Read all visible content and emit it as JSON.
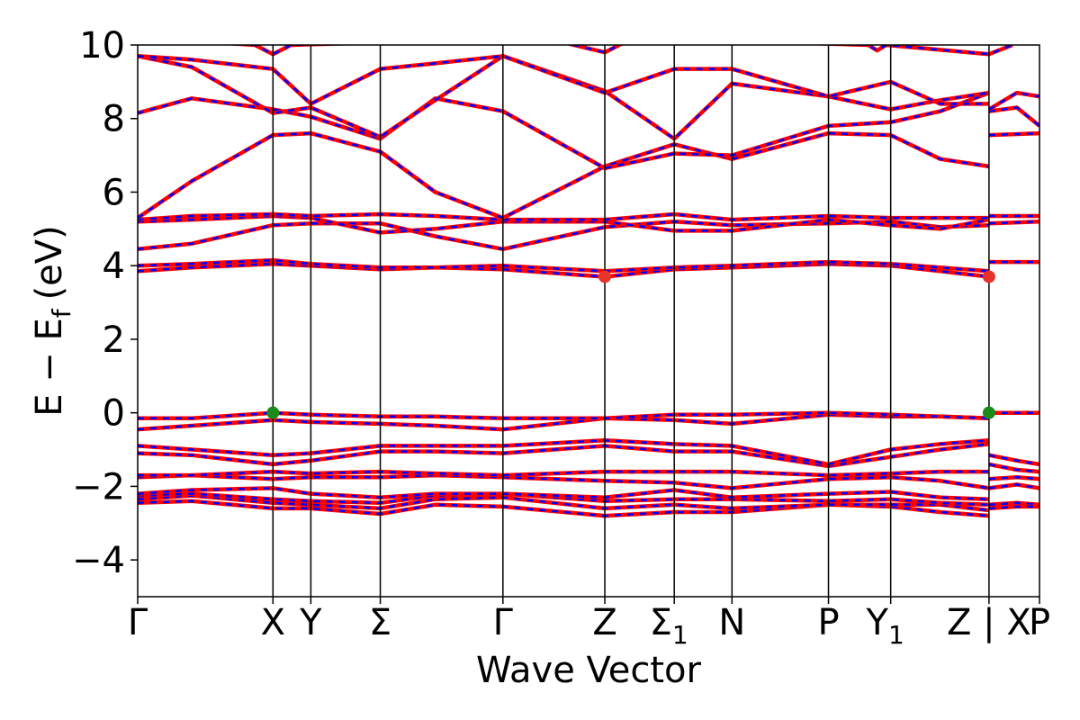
{
  "chart_data": {
    "type": "line",
    "title": "",
    "xlabel": "Wave Vector",
    "ylabel": "E − E_f (eV)",
    "ylabel_parts": {
      "main": "E − E",
      "sub": "f",
      "unit": "(eV)"
    },
    "ylim": [
      -5,
      10
    ],
    "yticks": [
      -4,
      -2,
      0,
      2,
      4,
      6,
      8,
      10
    ],
    "ytick_labels": [
      "−4",
      "−2",
      "0",
      "2",
      "4",
      "6",
      "8",
      "10"
    ],
    "grid": false,
    "legend": "none",
    "kpath": [
      {
        "label": "Γ",
        "sub": "",
        "x": 0.0
      },
      {
        "label": "X",
        "sub": "",
        "x": 1.5
      },
      {
        "label": "Y",
        "sub": "",
        "x": 1.92
      },
      {
        "label": "Σ",
        "sub": "",
        "x": 2.69
      },
      {
        "label": "Γ",
        "sub": "",
        "x": 4.05
      },
      {
        "label": "Z",
        "sub": "",
        "x": 5.18
      },
      {
        "label": "Σ",
        "sub": "1",
        "x": 5.95
      },
      {
        "label": "N",
        "sub": "",
        "x": 6.59
      },
      {
        "label": "P",
        "sub": "",
        "x": 7.66
      },
      {
        "label": "Y",
        "sub": "1",
        "x": 8.35
      },
      {
        "label": "Z | X",
        "sub": "",
        "x": 9.44
      },
      {
        "label": "P",
        "sub": "",
        "x": 10.0
      }
    ],
    "xlim": [
      0,
      10.0
    ],
    "series_style": [
      {
        "name": "",
        "color": "#ff0000",
        "dash": "solid"
      },
      {
        "name": "",
        "color": "#0000ff",
        "dash": "dashed"
      }
    ],
    "markers": [
      {
        "name": "CBM",
        "color": "#e8332a",
        "points": [
          [
            5.18,
            3.7
          ],
          [
            9.44,
            3.7
          ]
        ]
      },
      {
        "name": "VBM",
        "color": "#1a8a1a",
        "points": [
          [
            1.5,
            0.0
          ],
          [
            9.44,
            0.0
          ]
        ]
      }
    ],
    "bands": [
      [
        [
          0,
          -2.45
        ],
        [
          0.6,
          -2.4
        ],
        [
          1.5,
          -2.6
        ],
        [
          1.92,
          -2.6
        ],
        [
          2.69,
          -2.75
        ],
        [
          3.3,
          -2.5
        ],
        [
          4.05,
          -2.55
        ],
        [
          5.18,
          -2.8
        ],
        [
          5.95,
          -2.7
        ],
        [
          6.59,
          -2.7
        ],
        [
          7.66,
          -2.5
        ],
        [
          8.35,
          -2.55
        ],
        [
          8.9,
          -2.7
        ],
        [
          9.44,
          -2.8
        ]
      ],
      [
        [
          0,
          -2.35
        ],
        [
          0.6,
          -2.25
        ],
        [
          1.5,
          -2.45
        ],
        [
          1.92,
          -2.5
        ],
        [
          2.69,
          -2.6
        ],
        [
          3.3,
          -2.35
        ],
        [
          4.05,
          -2.3
        ],
        [
          5.18,
          -2.6
        ],
        [
          5.95,
          -2.5
        ],
        [
          6.59,
          -2.6
        ],
        [
          7.66,
          -2.5
        ],
        [
          8.35,
          -2.5
        ],
        [
          8.9,
          -2.5
        ],
        [
          9.44,
          -2.65
        ]
      ],
      [
        [
          0,
          -2.25
        ],
        [
          0.6,
          -2.2
        ],
        [
          1.5,
          -2.35
        ],
        [
          1.92,
          -2.4
        ],
        [
          2.69,
          -2.45
        ],
        [
          3.3,
          -2.25
        ],
        [
          4.05,
          -2.2
        ],
        [
          5.18,
          -2.4
        ],
        [
          5.95,
          -2.35
        ],
        [
          6.59,
          -2.35
        ],
        [
          7.66,
          -2.4
        ],
        [
          8.35,
          -2.35
        ],
        [
          8.9,
          -2.45
        ],
        [
          9.44,
          -2.5
        ]
      ],
      [
        [
          0,
          -2.2
        ],
        [
          0.6,
          -2.1
        ],
        [
          1.5,
          -2.05
        ],
        [
          1.92,
          -2.2
        ],
        [
          2.69,
          -2.3
        ],
        [
          3.3,
          -2.2
        ],
        [
          4.05,
          -2.2
        ],
        [
          5.18,
          -2.3
        ],
        [
          5.95,
          -2.1
        ],
        [
          6.59,
          -2.3
        ],
        [
          7.66,
          -2.2
        ],
        [
          8.35,
          -2.15
        ],
        [
          8.9,
          -2.3
        ],
        [
          9.44,
          -2.35
        ]
      ],
      [
        [
          0,
          -1.75
        ],
        [
          0.6,
          -1.7
        ],
        [
          1.5,
          -1.8
        ],
        [
          1.92,
          -1.75
        ],
        [
          2.69,
          -1.75
        ],
        [
          3.3,
          -1.7
        ],
        [
          4.05,
          -1.75
        ],
        [
          5.18,
          -1.85
        ],
        [
          5.95,
          -1.9
        ],
        [
          6.59,
          -2.05
        ],
        [
          7.66,
          -1.8
        ],
        [
          8.35,
          -1.75
        ],
        [
          8.9,
          -1.85
        ],
        [
          9.44,
          -2.05
        ]
      ],
      [
        [
          0,
          -1.7
        ],
        [
          0.6,
          -1.7
        ],
        [
          1.5,
          -1.6
        ],
        [
          1.92,
          -1.65
        ],
        [
          2.69,
          -1.6
        ],
        [
          3.3,
          -1.65
        ],
        [
          4.05,
          -1.7
        ],
        [
          5.18,
          -1.6
        ],
        [
          5.95,
          -1.6
        ],
        [
          6.59,
          -1.6
        ],
        [
          7.66,
          -1.7
        ],
        [
          8.35,
          -1.65
        ],
        [
          8.9,
          -1.6
        ],
        [
          9.44,
          -1.6
        ]
      ],
      [
        [
          0,
          -1.1
        ],
        [
          0.6,
          -1.15
        ],
        [
          1.5,
          -1.4
        ],
        [
          1.92,
          -1.3
        ],
        [
          2.69,
          -1.05
        ],
        [
          3.3,
          -1.05
        ],
        [
          4.05,
          -1.1
        ],
        [
          5.18,
          -0.9
        ],
        [
          5.95,
          -1.05
        ],
        [
          6.59,
          -1.05
        ],
        [
          7.66,
          -1.45
        ],
        [
          8.35,
          -1.2
        ],
        [
          8.9,
          -1.0
        ],
        [
          9.44,
          -0.85
        ]
      ],
      [
        [
          0,
          -0.9
        ],
        [
          0.6,
          -1.0
        ],
        [
          1.5,
          -1.15
        ],
        [
          1.92,
          -1.1
        ],
        [
          2.69,
          -0.9
        ],
        [
          3.3,
          -0.9
        ],
        [
          4.05,
          -0.9
        ],
        [
          5.18,
          -0.75
        ],
        [
          5.95,
          -0.85
        ],
        [
          6.59,
          -0.9
        ],
        [
          7.66,
          -1.4
        ],
        [
          8.35,
          -1.0
        ],
        [
          8.9,
          -0.85
        ],
        [
          9.44,
          -0.75
        ]
      ],
      [
        [
          0,
          -0.45
        ],
        [
          0.6,
          -0.35
        ],
        [
          1.5,
          -0.2
        ],
        [
          1.92,
          -0.25
        ],
        [
          2.69,
          -0.3
        ],
        [
          3.3,
          -0.35
        ],
        [
          4.05,
          -0.45
        ],
        [
          5.18,
          -0.15
        ],
        [
          5.95,
          -0.2
        ],
        [
          6.59,
          -0.3
        ],
        [
          7.66,
          -0.05
        ],
        [
          8.35,
          -0.1
        ],
        [
          8.9,
          -0.1
        ],
        [
          9.44,
          -0.15
        ]
      ],
      [
        [
          0,
          -0.15
        ],
        [
          0.6,
          -0.15
        ],
        [
          1.5,
          0.0
        ],
        [
          1.92,
          -0.05
        ],
        [
          2.69,
          -0.1
        ],
        [
          3.3,
          -0.1
        ],
        [
          4.05,
          -0.15
        ],
        [
          5.18,
          -0.15
        ],
        [
          5.95,
          -0.05
        ],
        [
          6.59,
          -0.05
        ],
        [
          7.66,
          0.0
        ],
        [
          8.35,
          -0.05
        ],
        [
          8.9,
          -0.1
        ],
        [
          9.44,
          -0.15
        ]
      ],
      [
        [
          0,
          3.85
        ],
        [
          0.6,
          3.95
        ],
        [
          1.5,
          4.05
        ],
        [
          1.92,
          4.0
        ],
        [
          2.69,
          3.9
        ],
        [
          3.3,
          3.95
        ],
        [
          4.05,
          3.9
        ],
        [
          5.18,
          3.7
        ],
        [
          5.95,
          3.9
        ],
        [
          6.59,
          3.95
        ],
        [
          7.66,
          4.05
        ],
        [
          8.35,
          4.0
        ],
        [
          8.9,
          3.85
        ],
        [
          9.44,
          3.7
        ]
      ],
      [
        [
          0,
          4.0
        ],
        [
          0.6,
          4.05
        ],
        [
          1.5,
          4.15
        ],
        [
          1.92,
          4.05
        ],
        [
          2.69,
          3.95
        ],
        [
          3.3,
          3.95
        ],
        [
          4.05,
          4.0
        ],
        [
          5.18,
          3.85
        ],
        [
          5.95,
          3.95
        ],
        [
          6.59,
          4.0
        ],
        [
          7.66,
          4.1
        ],
        [
          8.35,
          4.05
        ],
        [
          8.9,
          3.95
        ],
        [
          9.44,
          3.85
        ]
      ],
      [
        [
          0,
          4.45
        ],
        [
          0.6,
          4.6
        ],
        [
          1.5,
          5.1
        ],
        [
          1.92,
          5.15
        ],
        [
          2.69,
          5.15
        ],
        [
          3.3,
          4.8
        ],
        [
          4.05,
          4.45
        ],
        [
          5.18,
          5.05
        ],
        [
          5.95,
          5.2
        ],
        [
          6.59,
          5.1
        ],
        [
          7.66,
          5.15
        ],
        [
          8.35,
          5.2
        ],
        [
          8.9,
          5.05
        ],
        [
          9.44,
          5.1
        ]
      ],
      [
        [
          0,
          5.2
        ],
        [
          0.6,
          5.25
        ],
        [
          1.5,
          5.35
        ],
        [
          1.92,
          5.3
        ],
        [
          2.69,
          4.9
        ],
        [
          3.3,
          5.0
        ],
        [
          4.05,
          5.2
        ],
        [
          5.18,
          5.2
        ],
        [
          5.95,
          4.95
        ],
        [
          6.59,
          4.95
        ],
        [
          7.66,
          5.25
        ],
        [
          8.35,
          5.1
        ],
        [
          8.9,
          5.0
        ],
        [
          9.44,
          5.25
        ]
      ],
      [
        [
          0,
          5.25
        ],
        [
          0.6,
          5.35
        ],
        [
          1.5,
          5.4
        ],
        [
          1.92,
          5.35
        ],
        [
          2.69,
          5.4
        ],
        [
          3.3,
          5.35
        ],
        [
          4.05,
          5.25
        ],
        [
          5.18,
          5.25
        ],
        [
          5.95,
          5.4
        ],
        [
          6.59,
          5.25
        ],
        [
          7.66,
          5.35
        ],
        [
          8.35,
          5.3
        ],
        [
          8.9,
          5.3
        ],
        [
          9.44,
          5.3
        ]
      ],
      [
        [
          0,
          5.3
        ],
        [
          0.6,
          6.3
        ],
        [
          1.5,
          7.55
        ],
        [
          1.92,
          7.6
        ],
        [
          2.69,
          7.1
        ],
        [
          3.3,
          6.0
        ],
        [
          4.05,
          5.3
        ],
        [
          5.18,
          6.7
        ],
        [
          5.95,
          7.3
        ],
        [
          6.59,
          6.9
        ],
        [
          7.66,
          7.6
        ],
        [
          8.35,
          7.55
        ],
        [
          8.9,
          6.9
        ],
        [
          9.44,
          6.7
        ]
      ],
      [
        [
          0,
          8.15
        ],
        [
          0.6,
          8.55
        ],
        [
          1.5,
          8.25
        ],
        [
          1.92,
          8.05
        ],
        [
          2.69,
          7.45
        ],
        [
          3.3,
          8.55
        ],
        [
          4.05,
          8.2
        ],
        [
          5.18,
          6.65
        ],
        [
          5.95,
          7.05
        ],
        [
          6.59,
          7.0
        ],
        [
          7.66,
          7.8
        ],
        [
          8.35,
          7.9
        ],
        [
          8.9,
          8.2
        ],
        [
          9.44,
          8.7
        ]
      ],
      [
        [
          0,
          9.7
        ],
        [
          0.6,
          9.4
        ],
        [
          1.5,
          8.15
        ],
        [
          1.92,
          8.3
        ],
        [
          2.69,
          7.5
        ],
        [
          3.3,
          8.5
        ],
        [
          4.05,
          9.7
        ],
        [
          5.18,
          8.75
        ],
        [
          5.95,
          7.45
        ],
        [
          6.59,
          8.95
        ],
        [
          7.66,
          8.6
        ],
        [
          8.35,
          8.25
        ],
        [
          8.9,
          8.5
        ],
        [
          9.44,
          8.7
        ]
      ],
      [
        [
          0,
          9.7
        ],
        [
          0.6,
          9.6
        ],
        [
          1.5,
          9.35
        ],
        [
          1.92,
          8.4
        ],
        [
          2.69,
          9.35
        ],
        [
          3.3,
          9.5
        ],
        [
          4.05,
          9.7
        ],
        [
          5.18,
          8.7
        ],
        [
          5.95,
          9.35
        ],
        [
          6.59,
          9.35
        ],
        [
          7.66,
          8.6
        ],
        [
          8.35,
          9.0
        ],
        [
          8.9,
          8.4
        ],
        [
          9.44,
          8.4
        ]
      ],
      [
        [
          0,
          10.2
        ],
        [
          1.3,
          10.0
        ],
        [
          1.5,
          9.75
        ],
        [
          1.7,
          10.0
        ],
        [
          4.5,
          10.2
        ],
        [
          5.18,
          9.8
        ],
        [
          5.5,
          10.2
        ],
        [
          8.1,
          10.0
        ],
        [
          8.2,
          9.85
        ],
        [
          8.3,
          10.0
        ],
        [
          9.44,
          9.75
        ],
        [
          9.7,
          10.0
        ]
      ],
      [
        [
          9.44,
          7.55
        ],
        [
          10.0,
          7.6
        ]
      ],
      [
        [
          9.44,
          8.2
        ],
        [
          9.75,
          8.3
        ],
        [
          10.0,
          7.8
        ]
      ],
      [
        [
          9.44,
          8.25
        ],
        [
          9.75,
          8.7
        ],
        [
          10.0,
          8.6
        ]
      ],
      [
        [
          9.44,
          4.1
        ],
        [
          10.0,
          4.1
        ]
      ],
      [
        [
          9.44,
          5.15
        ],
        [
          10.0,
          5.2
        ]
      ],
      [
        [
          9.44,
          5.35
        ],
        [
          10.0,
          5.35
        ]
      ],
      [
        [
          9.44,
          0.0
        ],
        [
          10.0,
          0.0
        ]
      ],
      [
        [
          9.44,
          -1.15
        ],
        [
          9.75,
          -1.3
        ],
        [
          10.0,
          -1.4
        ]
      ],
      [
        [
          9.44,
          -1.4
        ],
        [
          9.75,
          -1.55
        ],
        [
          10.0,
          -1.6
        ]
      ],
      [
        [
          9.44,
          -1.8
        ],
        [
          9.75,
          -1.75
        ],
        [
          10.0,
          -1.8
        ]
      ],
      [
        [
          9.44,
          -2.05
        ],
        [
          9.75,
          -1.95
        ],
        [
          10.0,
          -2.05
        ]
      ],
      [
        [
          9.44,
          -2.5
        ],
        [
          9.75,
          -2.45
        ],
        [
          10.0,
          -2.5
        ]
      ],
      [
        [
          9.44,
          -2.6
        ],
        [
          9.75,
          -2.55
        ],
        [
          10.0,
          -2.55
        ]
      ]
    ]
  }
}
